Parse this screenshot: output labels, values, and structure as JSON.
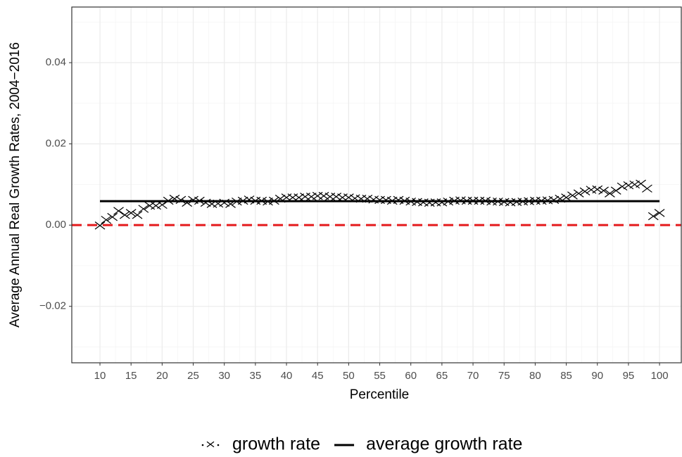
{
  "chart_data": {
    "type": "scatter",
    "xlabel": "Percentile",
    "ylabel": "Average Annual Real Growth Rates, 2004−2016",
    "xlim": [
      5.47,
      103.5
    ],
    "ylim": [
      -0.0339,
      0.0537
    ],
    "xticks": [
      10,
      15,
      20,
      25,
      30,
      35,
      40,
      45,
      50,
      55,
      60,
      65,
      70,
      75,
      80,
      85,
      90,
      95,
      100
    ],
    "yticks": [
      {
        "value": -0.02,
        "label": "−0.02"
      },
      {
        "value": 0,
        "label": "0.00"
      },
      0.02,
      0.04
    ],
    "grid": true,
    "legend": "bottom",
    "reference_line": {
      "value": 0,
      "color": "#e41a1c"
    },
    "series": [
      {
        "name": "growth rate",
        "color": "#000000",
        "marker": "x",
        "x": [
          10,
          11,
          12,
          13,
          14,
          15,
          16,
          17,
          18,
          19,
          20,
          21,
          22,
          23,
          24,
          25,
          26,
          27,
          28,
          29,
          30,
          31,
          32,
          33,
          34,
          35,
          36,
          37,
          38,
          39,
          40,
          41,
          42,
          43,
          44,
          45,
          46,
          47,
          48,
          49,
          50,
          51,
          52,
          53,
          54,
          55,
          56,
          57,
          58,
          59,
          60,
          61,
          62,
          63,
          64,
          65,
          66,
          67,
          68,
          69,
          70,
          71,
          72,
          73,
          74,
          75,
          76,
          77,
          78,
          79,
          80,
          81,
          82,
          83,
          84,
          85,
          86,
          87,
          88,
          89,
          90,
          91,
          92,
          93,
          94,
          95,
          96,
          97,
          98,
          99,
          100
        ],
        "values": [
          -0.0001,
          0.0013,
          0.002,
          0.0035,
          0.0025,
          0.003,
          0.0025,
          0.004,
          0.0048,
          0.0048,
          0.005,
          0.006,
          0.0065,
          0.0062,
          0.0055,
          0.0062,
          0.006,
          0.0055,
          0.0052,
          0.0053,
          0.0055,
          0.0052,
          0.0058,
          0.006,
          0.0063,
          0.006,
          0.006,
          0.0058,
          0.006,
          0.0065,
          0.0068,
          0.0068,
          0.0068,
          0.007,
          0.007,
          0.0072,
          0.0072,
          0.007,
          0.007,
          0.0068,
          0.0068,
          0.0066,
          0.0065,
          0.0065,
          0.0063,
          0.0062,
          0.0062,
          0.006,
          0.0062,
          0.006,
          0.0058,
          0.0057,
          0.0056,
          0.0055,
          0.0056,
          0.0056,
          0.0058,
          0.006,
          0.0061,
          0.006,
          0.006,
          0.006,
          0.006,
          0.0058,
          0.0058,
          0.0057,
          0.0056,
          0.0057,
          0.0058,
          0.0059,
          0.006,
          0.006,
          0.0061,
          0.0062,
          0.0065,
          0.0068,
          0.0073,
          0.0078,
          0.0083,
          0.0087,
          0.0088,
          0.0085,
          0.0078,
          0.0085,
          0.0095,
          0.0098,
          0.01,
          0.0102,
          0.009,
          0.0022,
          0.003
        ]
      },
      {
        "name": "average growth rate",
        "color": "#000000",
        "marker": "line",
        "x": [
          10,
          100
        ],
        "values": [
          0.0059,
          0.0059
        ]
      }
    ]
  }
}
